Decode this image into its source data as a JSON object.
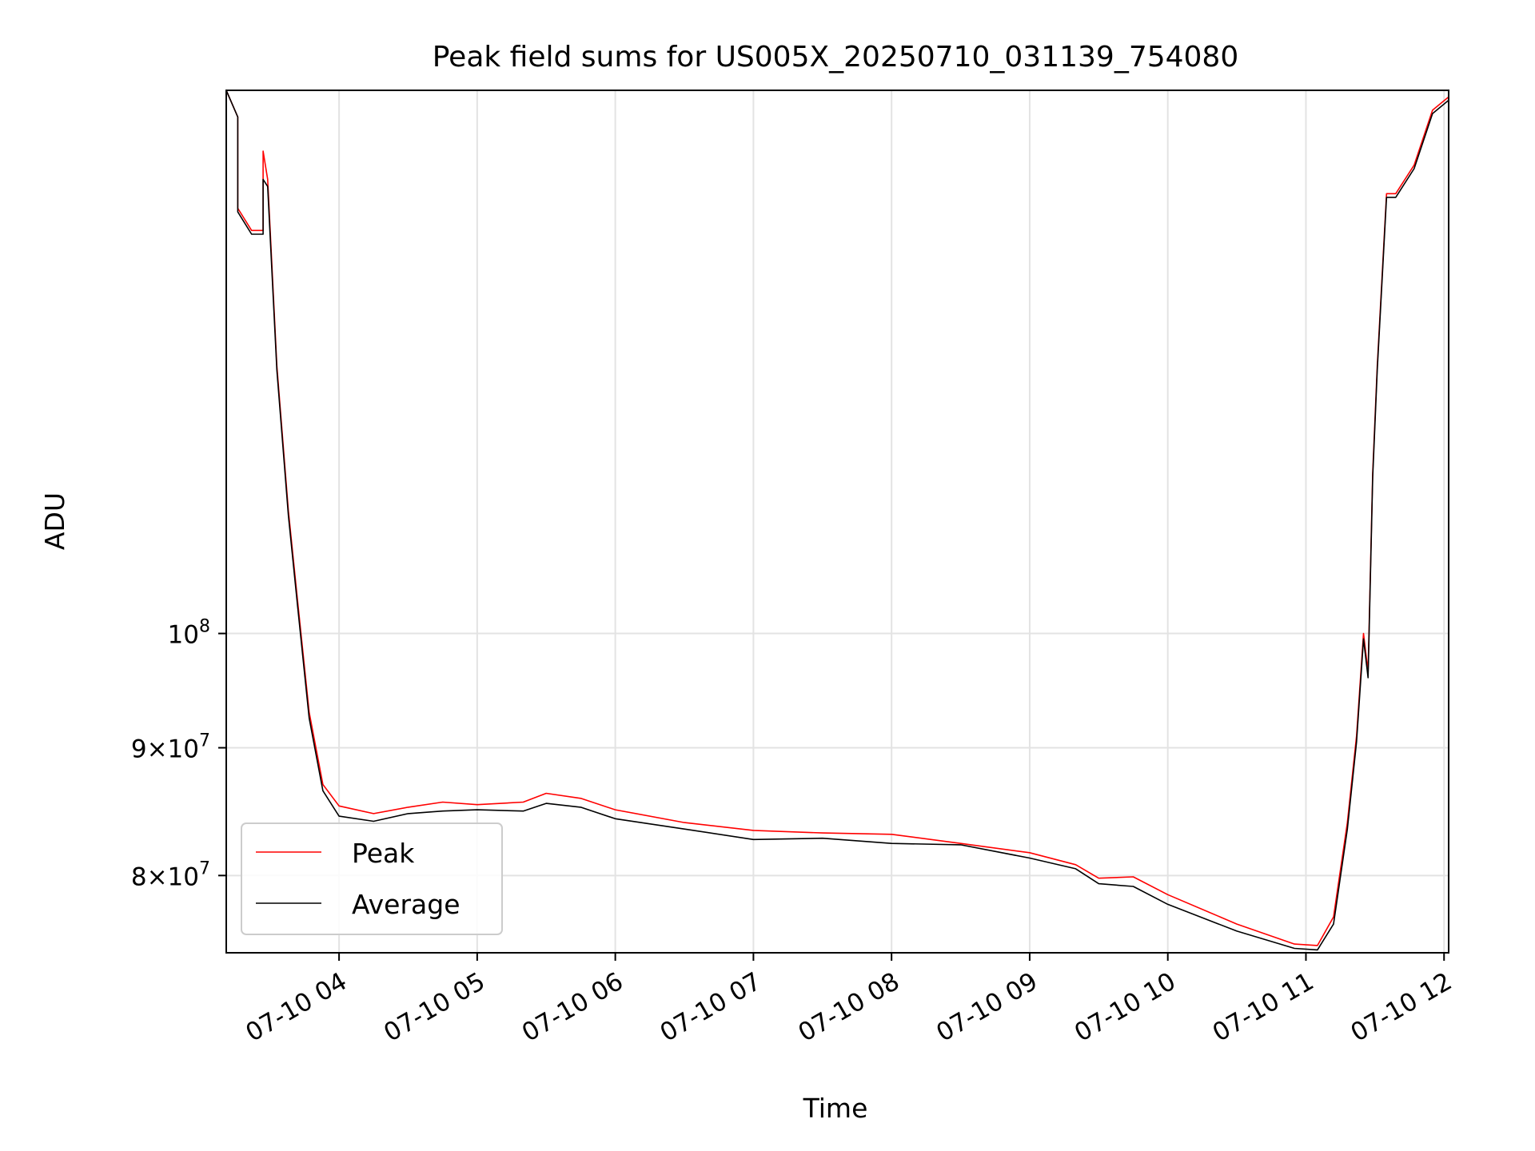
{
  "chart_data": {
    "type": "line",
    "title": "Peak field sums for US005X_20250710_031139_754080",
    "xlabel": "Time",
    "ylabel": "ADU",
    "xscale": "time",
    "yscale": "log",
    "grid": true,
    "legend_position": "lower-left",
    "xlim": [
      "2025-07-10 03:11",
      "2025-07-10 12:02"
    ],
    "ylim": [
      74500000,
      165000000
    ],
    "x_ticks": [
      {
        "value": "2025-07-10 04:00",
        "label": "07-10 04"
      },
      {
        "value": "2025-07-10 05:00",
        "label": "07-10 05"
      },
      {
        "value": "2025-07-10 06:00",
        "label": "07-10 06"
      },
      {
        "value": "2025-07-10 07:00",
        "label": "07-10 07"
      },
      {
        "value": "2025-07-10 08:00",
        "label": "07-10 08"
      },
      {
        "value": "2025-07-10 09:00",
        "label": "07-10 09"
      },
      {
        "value": "2025-07-10 10:00",
        "label": "07-10 10"
      },
      {
        "value": "2025-07-10 11:00",
        "label": "07-10 11"
      },
      {
        "value": "2025-07-10 12:00",
        "label": "07-10 12"
      }
    ],
    "y_ticks": [
      {
        "value": 100000000,
        "base": "10",
        "exp": "8",
        "mant": ""
      },
      {
        "value": 90000000,
        "base": "10",
        "exp": "7",
        "mant": "9×"
      },
      {
        "value": 80000000,
        "base": "10",
        "exp": "7",
        "mant": "8×"
      }
    ],
    "series": [
      {
        "name": "Peak",
        "color": "#ff0000",
        "points": [
          [
            "2025-07-10 03:11",
            165000000
          ],
          [
            "2025-07-10 03:16",
            161000000
          ],
          [
            "2025-07-10 03:16",
            148000000
          ],
          [
            "2025-07-10 03:22",
            145000000
          ],
          [
            "2025-07-10 03:27",
            145000000
          ],
          [
            "2025-07-10 03:27",
            156000000
          ],
          [
            "2025-07-10 03:29",
            152000000
          ],
          [
            "2025-07-10 03:33",
            128000000
          ],
          [
            "2025-07-10 03:38",
            112000000
          ],
          [
            "2025-07-10 03:42",
            103000000
          ],
          [
            "2025-07-10 03:47",
            93000000
          ],
          [
            "2025-07-10 03:53",
            87000000
          ],
          [
            "2025-07-10 04:00",
            85300000
          ],
          [
            "2025-07-10 04:15",
            84700000
          ],
          [
            "2025-07-10 04:30",
            85200000
          ],
          [
            "2025-07-10 04:45",
            85600000
          ],
          [
            "2025-07-10 05:00",
            85400000
          ],
          [
            "2025-07-10 05:20",
            85600000
          ],
          [
            "2025-07-10 05:30",
            86300000
          ],
          [
            "2025-07-10 05:45",
            85900000
          ],
          [
            "2025-07-10 06:00",
            85000000
          ],
          [
            "2025-07-10 06:30",
            84000000
          ],
          [
            "2025-07-10 07:00",
            83400000
          ],
          [
            "2025-07-10 07:30",
            83200000
          ],
          [
            "2025-07-10 08:00",
            83100000
          ],
          [
            "2025-07-10 08:30",
            82400000
          ],
          [
            "2025-07-10 09:00",
            81700000
          ],
          [
            "2025-07-10 09:20",
            80800000
          ],
          [
            "2025-07-10 09:30",
            79800000
          ],
          [
            "2025-07-10 09:45",
            79900000
          ],
          [
            "2025-07-10 10:00",
            78600000
          ],
          [
            "2025-07-10 10:30",
            76500000
          ],
          [
            "2025-07-10 10:55",
            75100000
          ],
          [
            "2025-07-10 11:05",
            75000000
          ],
          [
            "2025-07-10 11:12",
            77000000
          ],
          [
            "2025-07-10 11:18",
            84000000
          ],
          [
            "2025-07-10 11:22",
            91000000
          ],
          [
            "2025-07-10 11:25",
            100000000
          ],
          [
            "2025-07-10 11:27",
            96500000
          ],
          [
            "2025-07-10 11:29",
            116000000
          ],
          [
            "2025-07-10 11:31",
            128000000
          ],
          [
            "2025-07-10 11:35",
            150000000
          ],
          [
            "2025-07-10 11:39",
            150000000
          ],
          [
            "2025-07-10 11:47",
            154000000
          ],
          [
            "2025-07-10 11:55",
            162000000
          ],
          [
            "2025-07-10 12:02",
            164000000
          ]
        ]
      },
      {
        "name": "Average",
        "color": "#000000",
        "points": [
          [
            "2025-07-10 03:11",
            165000000
          ],
          [
            "2025-07-10 03:16",
            161000000
          ],
          [
            "2025-07-10 03:16",
            147500000
          ],
          [
            "2025-07-10 03:22",
            144500000
          ],
          [
            "2025-07-10 03:27",
            144500000
          ],
          [
            "2025-07-10 03:27",
            152000000
          ],
          [
            "2025-07-10 03:29",
            151000000
          ],
          [
            "2025-07-10 03:33",
            127500000
          ],
          [
            "2025-07-10 03:38",
            111500000
          ],
          [
            "2025-07-10 03:42",
            102500000
          ],
          [
            "2025-07-10 03:47",
            92500000
          ],
          [
            "2025-07-10 03:53",
            86500000
          ],
          [
            "2025-07-10 04:00",
            84500000
          ],
          [
            "2025-07-10 04:15",
            84100000
          ],
          [
            "2025-07-10 04:30",
            84700000
          ],
          [
            "2025-07-10 04:45",
            84900000
          ],
          [
            "2025-07-10 05:00",
            85000000
          ],
          [
            "2025-07-10 05:20",
            84900000
          ],
          [
            "2025-07-10 05:30",
            85500000
          ],
          [
            "2025-07-10 05:45",
            85200000
          ],
          [
            "2025-07-10 06:00",
            84300000
          ],
          [
            "2025-07-10 06:30",
            83500000
          ],
          [
            "2025-07-10 07:00",
            82700000
          ],
          [
            "2025-07-10 07:30",
            82800000
          ],
          [
            "2025-07-10 08:00",
            82400000
          ],
          [
            "2025-07-10 08:30",
            82300000
          ],
          [
            "2025-07-10 09:00",
            81300000
          ],
          [
            "2025-07-10 09:20",
            80500000
          ],
          [
            "2025-07-10 09:30",
            79400000
          ],
          [
            "2025-07-10 09:45",
            79200000
          ],
          [
            "2025-07-10 10:00",
            77900000
          ],
          [
            "2025-07-10 10:30",
            76000000
          ],
          [
            "2025-07-10 10:55",
            74800000
          ],
          [
            "2025-07-10 11:05",
            74700000
          ],
          [
            "2025-07-10 11:12",
            76500000
          ],
          [
            "2025-07-10 11:18",
            83500000
          ],
          [
            "2025-07-10 11:22",
            90500000
          ],
          [
            "2025-07-10 11:25",
            99500000
          ],
          [
            "2025-07-10 11:27",
            96000000
          ],
          [
            "2025-07-10 11:29",
            115500000
          ],
          [
            "2025-07-10 11:31",
            127500000
          ],
          [
            "2025-07-10 11:35",
            149500000
          ],
          [
            "2025-07-10 11:39",
            149500000
          ],
          [
            "2025-07-10 11:47",
            153500000
          ],
          [
            "2025-07-10 11:55",
            161500000
          ],
          [
            "2025-07-10 12:02",
            163500000
          ]
        ]
      }
    ]
  }
}
